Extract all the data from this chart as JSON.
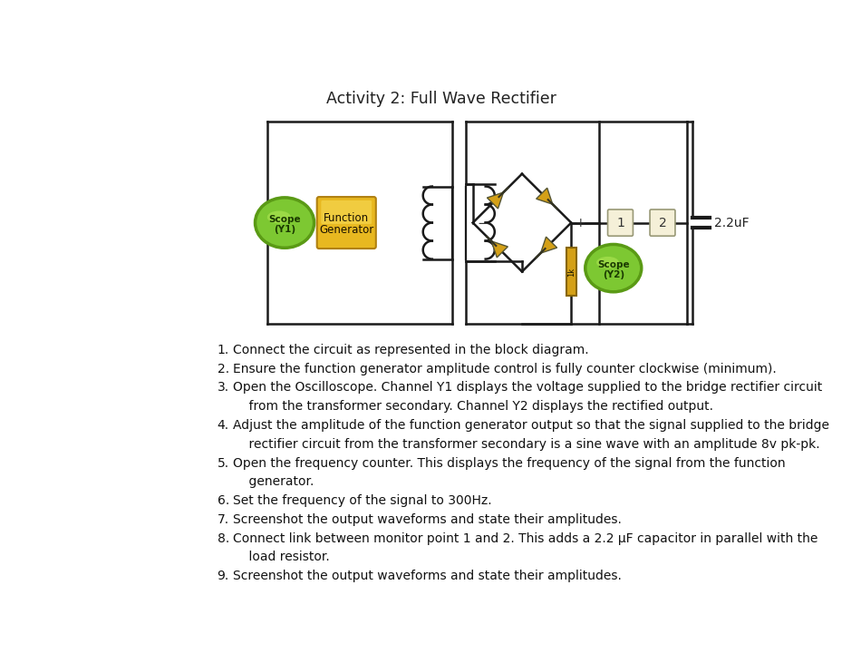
{
  "title": "Activity 2: Full Wave Rectifier",
  "title_fontsize": 12.5,
  "background_color": "#ffffff",
  "instructions": [
    [
      "1.",
      "Connect the circuit as represented in the block diagram."
    ],
    [
      "2.",
      "Ensure the function generator amplitude control is fully counter clockwise (minimum)."
    ],
    [
      "3.",
      "Open the Oscilloscope. Channel Y1 displays the voltage supplied to the bridge rectifier circuit"
    ],
    [
      "",
      "    from the transformer secondary. Channel Y2 displays the rectified output."
    ],
    [
      "4.",
      "Adjust the amplitude of the function generator output so that the signal supplied to the bridge"
    ],
    [
      "",
      "    rectifier circuit from the transformer secondary is a sine wave with an amplitude 8v pk-pk."
    ],
    [
      "5.",
      "Open the frequency counter. This displays the frequency of the signal from the function"
    ],
    [
      "",
      "    generator."
    ],
    [
      "6.",
      "Set the frequency of the signal to 300Hz."
    ],
    [
      "7.",
      "Screenshot the output waveforms and state their amplitudes."
    ],
    [
      "8.",
      "Connect link between monitor point 1 and 2. This adds a 2.2 μF capacitor in parallel with the"
    ],
    [
      "",
      "    load resistor."
    ],
    [
      "9.",
      "Screenshot the output waveforms and state their amplitudes."
    ]
  ],
  "wire_color": "#1a1a1a",
  "diode_color": "#d4a017",
  "scope_color": "#7dc832",
  "scope_edge": "#5a9a15",
  "func_gen_color": "#e8b820",
  "resistor_color": "#d4a017",
  "monitor_box_color": "#f5f0d8",
  "monitor_border_color": "#999977"
}
